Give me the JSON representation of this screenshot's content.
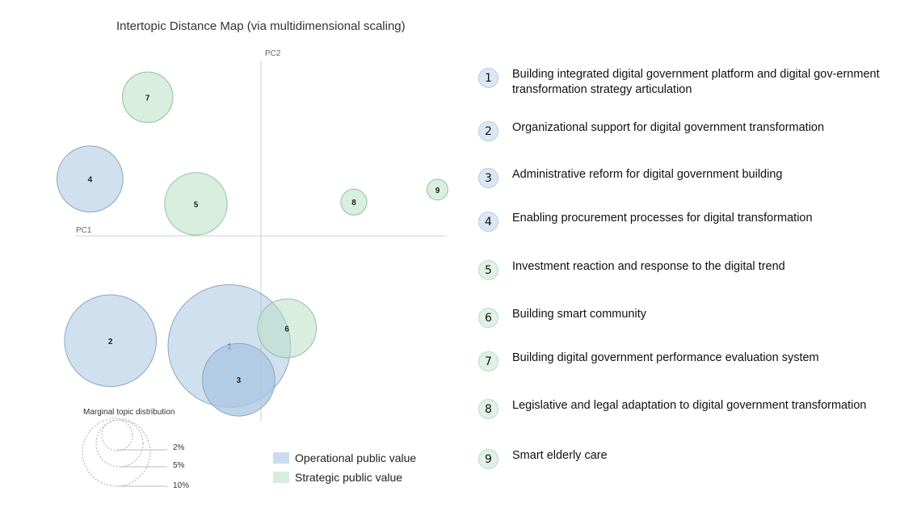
{
  "chart_data": {
    "type": "scatter",
    "title": "Intertopic Distance Map (via multidimensional scaling)",
    "xlabel": "PC1",
    "ylabel": "PC2",
    "xlim": [
      -1,
      1
    ],
    "ylim": [
      -1,
      1
    ],
    "grid": false,
    "colors": {
      "operational": "#a9c7e2",
      "strategic": "#b9e0c4"
    },
    "topics": [
      {
        "id": "1",
        "x": -0.17,
        "y": -0.62,
        "size": 10.0,
        "group": "operational"
      },
      {
        "id": "2",
        "x": -0.81,
        "y": -0.59,
        "size": 5.6,
        "group": "operational"
      },
      {
        "id": "3",
        "x": -0.12,
        "y": -0.81,
        "size": 3.5,
        "group": "operational"
      },
      {
        "id": "4",
        "x": -0.92,
        "y": 0.32,
        "size": 2.9,
        "group": "operational"
      },
      {
        "id": "5",
        "x": -0.35,
        "y": 0.18,
        "size": 2.6,
        "group": "strategic"
      },
      {
        "id": "6",
        "x": 0.14,
        "y": -0.52,
        "size": 2.3,
        "group": "strategic"
      },
      {
        "id": "7",
        "x": -0.61,
        "y": 0.78,
        "size": 1.7,
        "group": "strategic"
      },
      {
        "id": "8",
        "x": 0.5,
        "y": 0.19,
        "size": 0.45,
        "group": "strategic"
      },
      {
        "id": "9",
        "x": 0.95,
        "y": 0.26,
        "size": 0.29,
        "group": "strategic"
      }
    ],
    "size_legend": {
      "title": "Marginal topic distribution",
      "levels": [
        "2%",
        "5%",
        "10%"
      ]
    },
    "group_legend": [
      {
        "key": "operational",
        "label": "Operational public value"
      },
      {
        "key": "strategic",
        "label": "Strategic public value"
      }
    ]
  },
  "topic_list": [
    {
      "num": "1",
      "group": "operational",
      "label": "Building integrated digital government platform and digital gov-ernment transformation strategy articulation"
    },
    {
      "num": "2",
      "group": "operational",
      "label": "Organizational support for digital government transformation"
    },
    {
      "num": "3",
      "group": "operational",
      "label": "Administrative reform for digital government building"
    },
    {
      "num": "4",
      "group": "operational",
      "label": "Enabling procurement processes for digital transformation"
    },
    {
      "num": "5",
      "group": "strategic",
      "label": "Investment reaction and response to the digital trend"
    },
    {
      "num": "6",
      "group": "strategic",
      "label": "Building smart community"
    },
    {
      "num": "7",
      "group": "strategic",
      "label": "Building digital government performance evaluation system"
    },
    {
      "num": "8",
      "group": "strategic",
      "label": "Legislative and legal adaptation to digital government transformation"
    },
    {
      "num": "9",
      "group": "strategic",
      "label": "Smart elderly care"
    }
  ]
}
